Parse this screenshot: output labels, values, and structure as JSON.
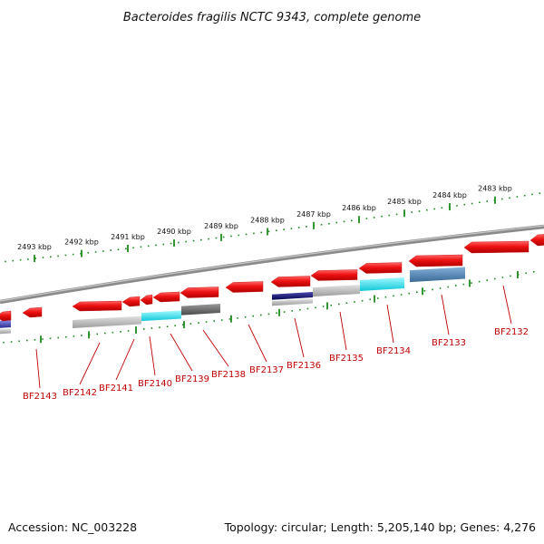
{
  "title": "Bacteroides fragilis NCTC 9343, complete genome",
  "footer": {
    "accession": "Accession: NC_003228",
    "summary": "Topology: circular; Length: 5,205,140 bp; Genes: 4,276"
  },
  "scale_labels": [
    "2493 kbp",
    "2492 kbp",
    "2491 kbp",
    "2490 kbp",
    "2489 kbp",
    "2488 kbp",
    "2487 kbp",
    "2486 kbp",
    "2485 kbp",
    "2484 kbp",
    "2483 kbp"
  ],
  "gene_labels": [
    "BF2143",
    "BF2142",
    "BF2141",
    "BF2140",
    "BF2139",
    "BF2138",
    "BF2137",
    "BF2136",
    "BF2135",
    "BF2134",
    "BF2133",
    "BF2132"
  ],
  "colors": {
    "cds": "#ee1111",
    "backbone": "#7a7a7a",
    "tick": "#1e8a1e",
    "label": "#c00000",
    "feature_gray": "#b8b8b8",
    "feature_cyan": "#18e6f0",
    "feature_dark_gray": "#6a6a6a",
    "feature_navy": "#101070",
    "feature_steel_blue": "#4a7fb0"
  }
}
